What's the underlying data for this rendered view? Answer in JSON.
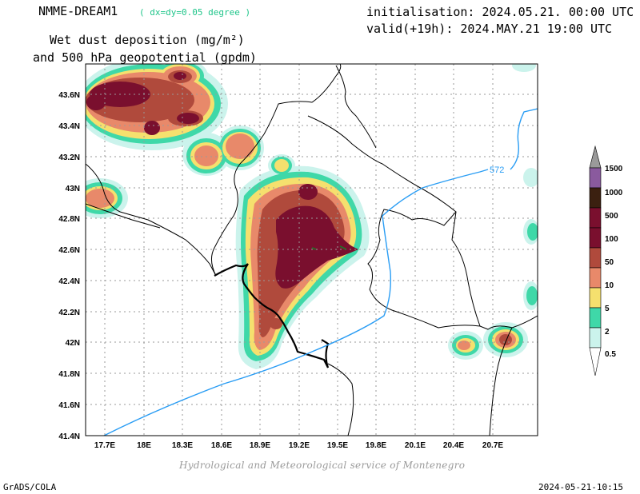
{
  "header": {
    "model": "NMME-DREAM1",
    "resolution": "( dx=dy=0.05 degree )",
    "initialisation": "initialisation: 2024.05.21. 00:00 UTC",
    "valid": "valid(+19h): 2024.MAY.21 19:00 UTC",
    "title_line1": "Wet dust deposition (mg/m²)",
    "title_line2": "and 500 hPa geopotential (gpdm)"
  },
  "map": {
    "lon_ticks": [
      "17.7E",
      "18E",
      "18.3E",
      "18.6E",
      "18.9E",
      "19.2E",
      "19.5E",
      "19.8E",
      "20.1E",
      "20.4E",
      "20.7E"
    ],
    "lat_ticks": [
      "43.6N",
      "43.4N",
      "43.2N",
      "43N",
      "42.8N",
      "42.6N",
      "42.4N",
      "42.2N",
      "42N",
      "41.8N",
      "41.6N",
      "41.4N"
    ],
    "contour_label": "572",
    "contour_color": "#2a9df4"
  },
  "legend": {
    "levels": [
      "1500",
      "1000",
      "500",
      "100",
      "50",
      "10",
      "5",
      "2",
      "0.5"
    ],
    "colors": [
      "#9a9a9a",
      "#8a5a9e",
      "#3b2010",
      "#7a0f2e",
      "#b04a3c",
      "#e8896a",
      "#f5e06e",
      "#3fd8a8",
      "#cbf3ec"
    ]
  },
  "footer": {
    "credit": "Hydrological and Meteorological service of Montenegro",
    "software": "GrADS/COLA",
    "timestamp": "2024-05-21-10:15"
  }
}
